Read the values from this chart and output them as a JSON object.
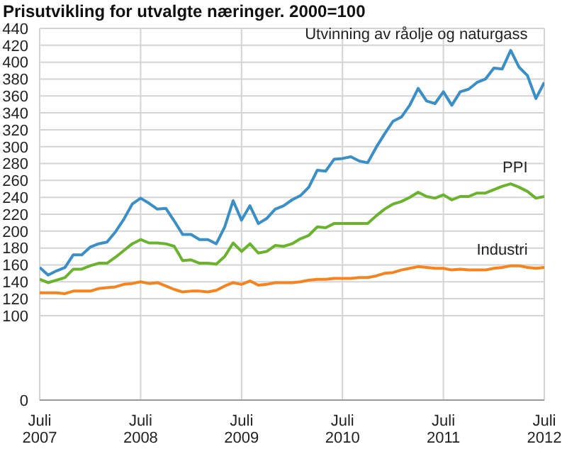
{
  "chart_data": {
    "type": "line",
    "title": "Prisutvikling for utvalgte næringer. 2000=100",
    "x": [
      "2007-07",
      "2007-08",
      "2007-09",
      "2007-10",
      "2007-11",
      "2007-12",
      "2008-01",
      "2008-02",
      "2008-03",
      "2008-04",
      "2008-05",
      "2008-06",
      "2008-07",
      "2008-08",
      "2008-09",
      "2008-10",
      "2008-11",
      "2008-12",
      "2009-01",
      "2009-02",
      "2009-03",
      "2009-04",
      "2009-05",
      "2009-06",
      "2009-07",
      "2009-08",
      "2009-09",
      "2009-10",
      "2009-11",
      "2009-12",
      "2010-01",
      "2010-02",
      "2010-03",
      "2010-04",
      "2010-05",
      "2010-06",
      "2010-07",
      "2010-08",
      "2010-09",
      "2010-10",
      "2010-11",
      "2010-12",
      "2011-01",
      "2011-02",
      "2011-03",
      "2011-04",
      "2011-05",
      "2011-06",
      "2011-07",
      "2011-08",
      "2011-09",
      "2011-10",
      "2011-11",
      "2011-12",
      "2012-01",
      "2012-02",
      "2012-03",
      "2012-04",
      "2012-05",
      "2012-06",
      "2012-07"
    ],
    "series": [
      {
        "name": "Utvinning av råolje og naturgass",
        "color": "#3a8fc7",
        "values": [
          157,
          148,
          153,
          157,
          172,
          172,
          181,
          185,
          187,
          199,
          214,
          232,
          239,
          233,
          226,
          227,
          212,
          196,
          196,
          190,
          190,
          185,
          205,
          236,
          213,
          230,
          209,
          215,
          226,
          230,
          237,
          242,
          252,
          272,
          271,
          285,
          286,
          288,
          283,
          281,
          299,
          315,
          330,
          335,
          349,
          369,
          354,
          351,
          365,
          349,
          365,
          368,
          376,
          380,
          393,
          392,
          414,
          394,
          384,
          357,
          376
        ]
      },
      {
        "name": "PPI",
        "color": "#6ab42d",
        "values": [
          143,
          139,
          142,
          145,
          155,
          155,
          159,
          162,
          162,
          169,
          177,
          185,
          190,
          186,
          186,
          185,
          182,
          165,
          166,
          162,
          162,
          161,
          170,
          186,
          176,
          185,
          174,
          176,
          183,
          182,
          185,
          191,
          195,
          205,
          204,
          209,
          209,
          209,
          209,
          209,
          218,
          226,
          232,
          235,
          240,
          246,
          241,
          239,
          243,
          237,
          241,
          241,
          245,
          245,
          249,
          253,
          256,
          252,
          247,
          239,
          241
        ]
      },
      {
        "name": "Industri",
        "color": "#f5841f",
        "values": [
          127,
          127,
          127,
          126,
          129,
          129,
          129,
          132,
          133,
          134,
          137,
          138,
          140,
          138,
          139,
          135,
          131,
          128,
          129,
          129,
          128,
          130,
          135,
          139,
          137,
          141,
          136,
          137,
          139,
          139,
          139,
          140,
          142,
          143,
          143,
          144,
          144,
          144,
          145,
          145,
          147,
          150,
          151,
          154,
          156,
          158,
          157,
          156,
          156,
          154,
          155,
          154,
          154,
          154,
          156,
          157,
          159,
          159,
          157,
          156,
          157
        ]
      }
    ],
    "xlim": [
      "2007-07",
      "2012-07"
    ],
    "xticks": [
      {
        "value": "2007-07",
        "label": "Juli 2007"
      },
      {
        "value": "2008-07",
        "label": "Juli 2008"
      },
      {
        "value": "2009-07",
        "label": "Juli 2009"
      },
      {
        "value": "2010-07",
        "label": "Juli 2010"
      },
      {
        "value": "2011-07",
        "label": "Juli 2011"
      },
      {
        "value": "2012-07",
        "label": "Juli 2012"
      }
    ],
    "ylim": [
      0,
      440
    ],
    "yticks": [
      0,
      100,
      120,
      140,
      160,
      180,
      200,
      220,
      240,
      260,
      280,
      300,
      320,
      340,
      360,
      380,
      400,
      420,
      440
    ],
    "grid": true,
    "legend": false,
    "marker": "none",
    "line_style": "solid"
  }
}
